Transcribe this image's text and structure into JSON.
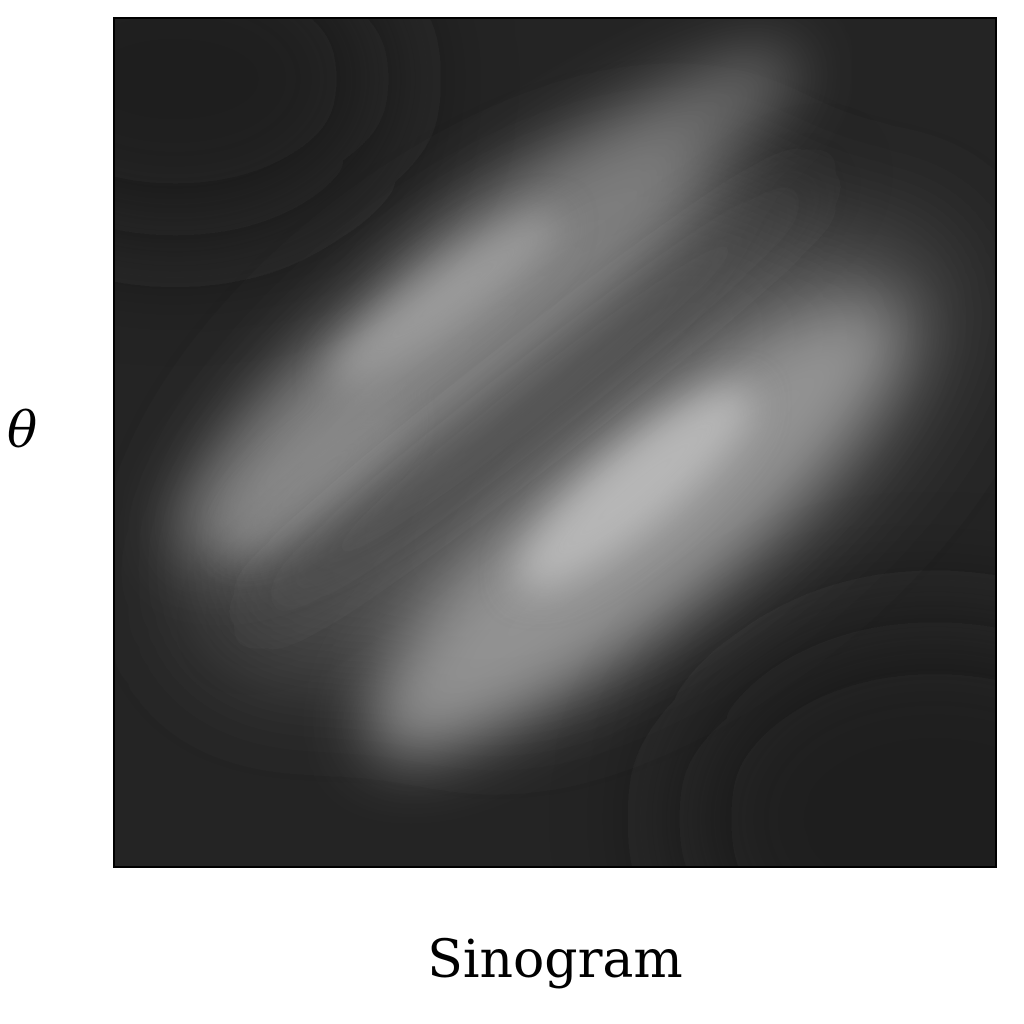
{
  "figure": {
    "caption": "Sinogram",
    "y_axis_symbol": "θ"
  },
  "colors": {
    "background_dark": "#262626",
    "band_light": "#c8c8c8",
    "frame": "#000000"
  }
}
